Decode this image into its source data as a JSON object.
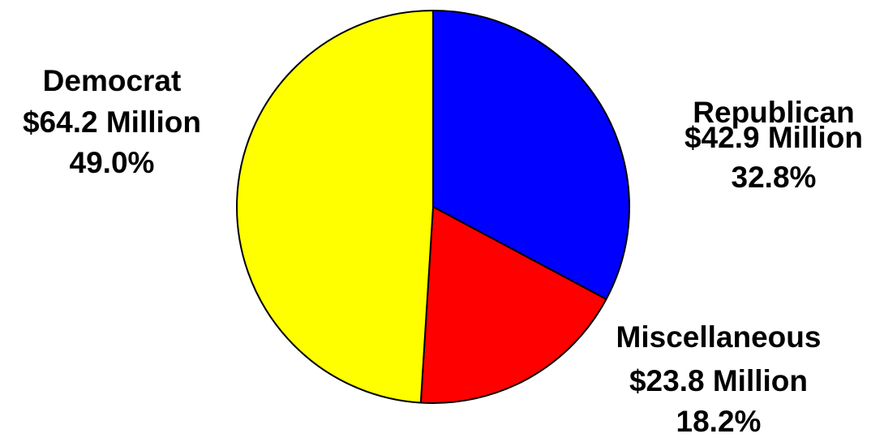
{
  "chart_data": {
    "type": "pie",
    "title": "",
    "start_angle_deg": 0,
    "direction": "clockwise",
    "slices": [
      {
        "name": "Republican",
        "amount_label": "$42.9 Million",
        "percent_label": "32.8%",
        "value": 42.9,
        "percent": 32.8,
        "color": "#0000ff",
        "label_side": "right"
      },
      {
        "name": "Miscellaneous",
        "amount_label": "$23.8 Million",
        "percent_label": "18.2%",
        "value": 23.8,
        "percent": 18.2,
        "color": "#ff0000",
        "label_side": "right"
      },
      {
        "name": "Democrat",
        "amount_label": "$64.2 Million",
        "percent_label": "49.0%",
        "value": 64.2,
        "percent": 49.0,
        "color": "#ffff00",
        "label_side": "left"
      }
    ]
  }
}
